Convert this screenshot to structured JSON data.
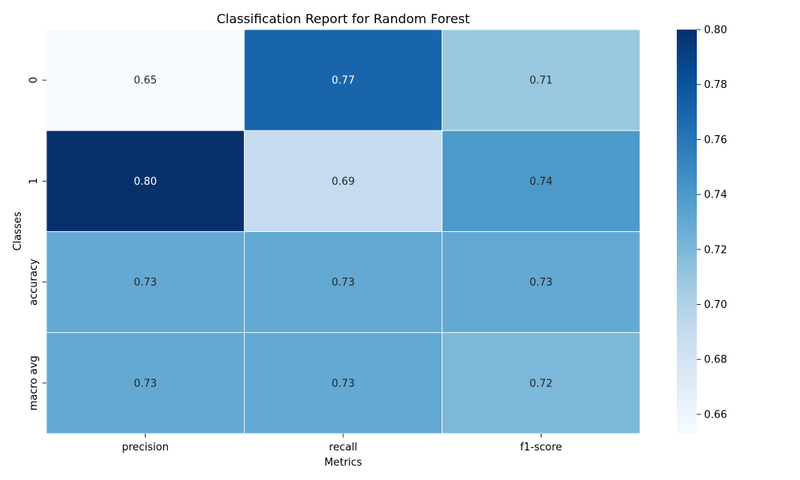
{
  "chart_data": {
    "type": "heatmap",
    "title": "Classification Report for Random Forest",
    "xlabel": "Metrics",
    "ylabel": "Classes",
    "x_categories": [
      "precision",
      "recall",
      "f1-score"
    ],
    "y_categories": [
      "0",
      "1",
      "accuracy",
      "macro avg"
    ],
    "values": [
      [
        0.65,
        0.77,
        0.71
      ],
      [
        0.8,
        0.69,
        0.74
      ],
      [
        0.73,
        0.73,
        0.73
      ],
      [
        0.73,
        0.73,
        0.72
      ]
    ],
    "cell_labels": [
      [
        "0.65",
        "0.77",
        "0.71"
      ],
      [
        "0.80",
        "0.69",
        "0.74"
      ],
      [
        "0.73",
        "0.73",
        "0.73"
      ],
      [
        "0.73",
        "0.73",
        "0.72"
      ]
    ],
    "colormap": "Blues",
    "colorbar": {
      "range": [
        0.653,
        0.8
      ],
      "ticks": [
        0.66,
        0.68,
        0.7,
        0.72,
        0.74,
        0.76,
        0.78,
        0.8
      ],
      "tick_labels": [
        "0.66",
        "0.68",
        "0.70",
        "0.72",
        "0.74",
        "0.76",
        "0.78",
        "0.80"
      ]
    },
    "colors": {
      "low": "#f7fbff",
      "high": "#08306b",
      "cell_border": "#ffffff",
      "text_dark": "#262626",
      "text_light": "#ffffff"
    }
  }
}
